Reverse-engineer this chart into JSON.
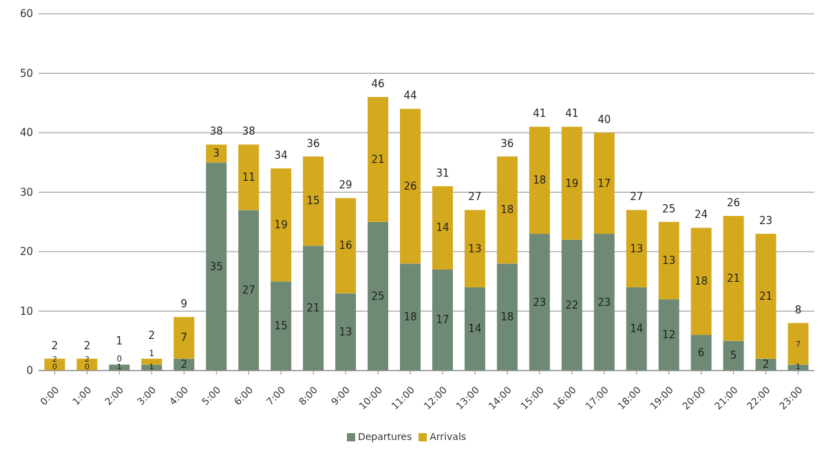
{
  "chart_data": {
    "type": "bar",
    "stacked": true,
    "categories": [
      "0:00",
      "1:00",
      "2:00",
      "3:00",
      "4:00",
      "5:00",
      "6:00",
      "7:00",
      "8:00",
      "9:00",
      "10:00",
      "11:00",
      "12:00",
      "13:00",
      "14:00",
      "15:00",
      "16:00",
      "17:00",
      "18:00",
      "19:00",
      "20:00",
      "21:00",
      "22:00",
      "23:00"
    ],
    "series": [
      {
        "name": "Departures",
        "color": "#6f8a74",
        "values": [
          0,
          0,
          1,
          1,
          2,
          35,
          27,
          15,
          21,
          13,
          25,
          18,
          17,
          14,
          18,
          23,
          22,
          23,
          14,
          12,
          6,
          5,
          2,
          1
        ]
      },
      {
        "name": "Arrivals",
        "color": "#d5a91d",
        "values": [
          2,
          2,
          0,
          1,
          7,
          3,
          11,
          19,
          15,
          16,
          21,
          26,
          14,
          13,
          18,
          18,
          19,
          17,
          13,
          13,
          18,
          21,
          21,
          7
        ]
      }
    ],
    "totals": [
      "2",
      "2",
      "1",
      "2",
      "9",
      "38",
      "38",
      "34",
      "36",
      "29",
      "46",
      "44",
      "31",
      "27",
      "36",
      "41",
      "41",
      "40",
      "27",
      "25",
      "24",
      "26",
      "23",
      "8"
    ],
    "data_labels": true,
    "ylim": [
      0,
      60
    ],
    "yticks": [
      0,
      10,
      20,
      30,
      40,
      50,
      60
    ],
    "grid": "y",
    "legend": "bottom"
  }
}
